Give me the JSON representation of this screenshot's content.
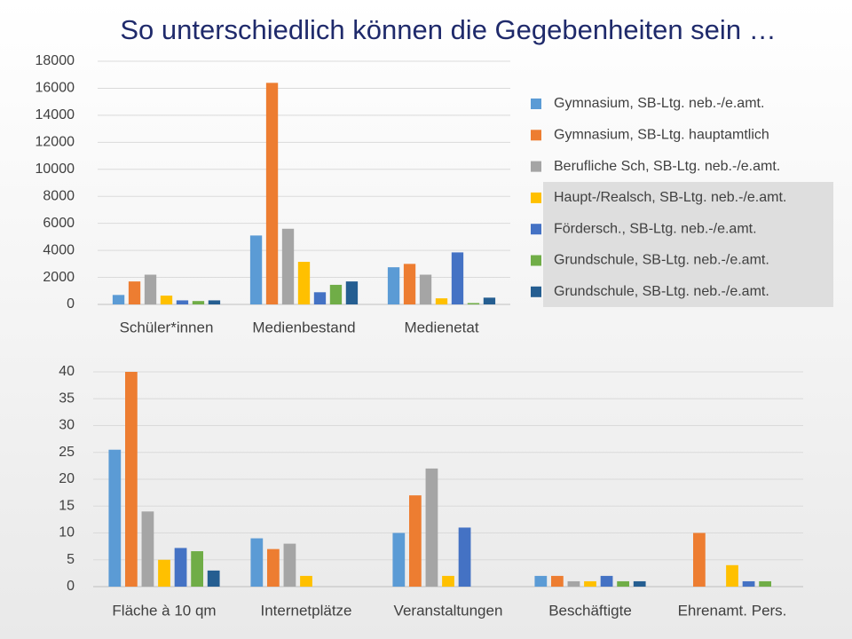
{
  "title": "So unterschiedlich können die Gegebenheiten sein …",
  "chart_data": [
    {
      "type": "bar",
      "categories": [
        "Schüler*innen",
        "Medienbestand",
        "Medienetat"
      ],
      "series": [
        {
          "name": "Gymnasium, SB-Ltg. neb.-/e.amt.",
          "color": "#5b9bd5",
          "values": [
            700,
            5100,
            2750
          ]
        },
        {
          "name": "Gymnasium, SB-Ltg. hauptamtlich",
          "color": "#ed7d31",
          "values": [
            1700,
            16400,
            3000
          ]
        },
        {
          "name": "Berufliche Sch, SB-Ltg. neb.-/e.amt.",
          "color": "#a5a5a5",
          "values": [
            2200,
            5600,
            2200
          ]
        },
        {
          "name": "Haupt-/Realsch, SB-Ltg. neb.-/e.amt.",
          "color": "#ffc000",
          "values": [
            650,
            3150,
            450
          ]
        },
        {
          "name": "Fördersch., SB-Ltg. neb.-/e.amt.",
          "color": "#4472c4",
          "values": [
            300,
            900,
            3850
          ]
        },
        {
          "name": "Grundschule, SB-Ltg. neb.-/e.amt.",
          "color": "#70ad47",
          "values": [
            250,
            1450,
            100
          ]
        },
        {
          "name": "Grundschule, SB-Ltg. neb.-/e.amt.",
          "color": "#255e91",
          "values": [
            300,
            1700,
            500
          ]
        }
      ],
      "ylim": [
        0,
        18000
      ],
      "yticks": [
        0,
        2000,
        4000,
        6000,
        8000,
        10000,
        12000,
        14000,
        16000,
        18000
      ],
      "grid": true,
      "legend": "right"
    },
    {
      "type": "bar",
      "categories": [
        "Fläche à 10 qm",
        "Internetplätze",
        "Veranstaltungen",
        "Beschäftigte",
        "Ehrenamt. Pers."
      ],
      "series": [
        {
          "color": "#5b9bd5",
          "values": [
            25.5,
            9,
            10,
            2,
            0
          ]
        },
        {
          "color": "#ed7d31",
          "values": [
            40,
            7,
            17,
            2,
            10
          ]
        },
        {
          "color": "#a5a5a5",
          "values": [
            14,
            8,
            22,
            1,
            0
          ]
        },
        {
          "color": "#ffc000",
          "values": [
            5,
            2,
            2,
            1,
            4
          ]
        },
        {
          "color": "#4472c4",
          "values": [
            7.2,
            0,
            11,
            2,
            1
          ]
        },
        {
          "color": "#70ad47",
          "values": [
            6.6,
            0,
            0,
            1,
            1
          ]
        },
        {
          "color": "#255e91",
          "values": [
            3,
            0,
            0,
            1,
            0
          ]
        }
      ],
      "ylim": [
        0,
        40
      ],
      "yticks": [
        0,
        5,
        10,
        15,
        20,
        25,
        30,
        35,
        40
      ],
      "grid": true
    }
  ]
}
